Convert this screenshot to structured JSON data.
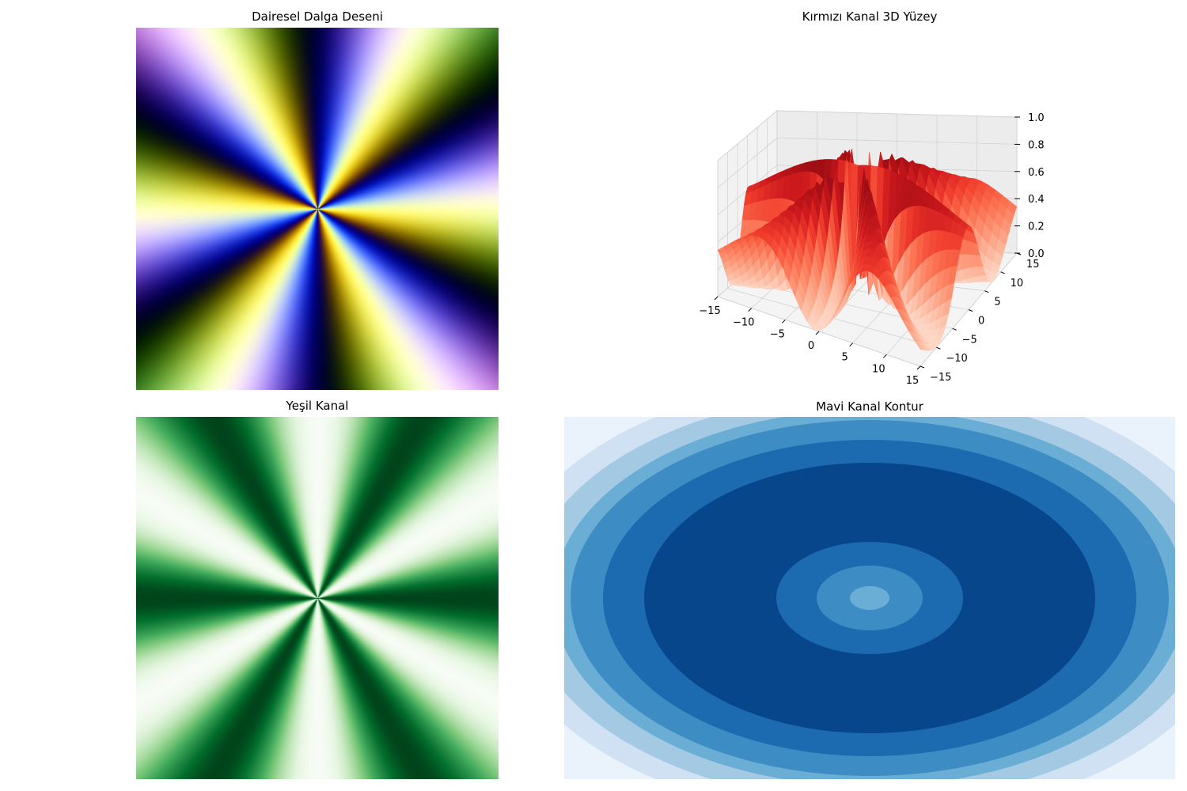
{
  "chart_data": [
    {
      "type": "image",
      "title": "Dairesel Dalga Deseni",
      "description_values": {
        "angular_frequency": 6,
        "channels": [
          "red",
          "green",
          "blue"
        ]
      }
    },
    {
      "type": "surface3d",
      "title": "Kırmızı Kanal 3D Yüzey",
      "colormap": "Reds",
      "xlim": [
        -15,
        15
      ],
      "ylim": [
        -15,
        15
      ],
      "zlim": [
        0.0,
        1.0
      ],
      "x_ticks": [
        "−15",
        "−10",
        "−5",
        "0",
        "5",
        "10",
        "15"
      ],
      "y_ticks": [
        "−15",
        "−10",
        "−5",
        "0",
        "5",
        "10",
        "15"
      ],
      "z_ticks": [
        "0.0",
        "0.2",
        "0.4",
        "0.6",
        "0.8",
        "1.0"
      ]
    },
    {
      "type": "heatmap",
      "title": "Yeşil Kanal",
      "colormap": "Greens",
      "angular_frequency": 6
    },
    {
      "type": "contour",
      "title": "Mavi Kanal Kontur",
      "colormap": "Blues",
      "levels": 8,
      "band_colors": [
        "#eaf2fb",
        "#cfe1f2",
        "#a4c9e3",
        "#6aaed6",
        "#3d8dc4",
        "#1c6aaf",
        "#08468b",
        "#1c6aaf",
        "#3d8dc4",
        "#6aaed6"
      ]
    }
  ]
}
